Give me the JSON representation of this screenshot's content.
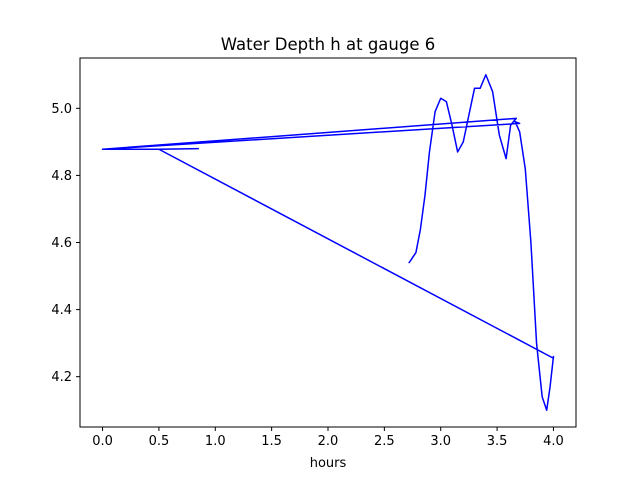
{
  "chart_data": {
    "type": "line",
    "title": "Water Depth h at gauge 6",
    "xlabel": "hours",
    "ylabel": "",
    "xlim": [
      -0.2,
      4.2
    ],
    "ylim": [
      4.05,
      5.15
    ],
    "xticks": [
      0.0,
      0.5,
      1.0,
      1.5,
      2.0,
      2.5,
      3.0,
      3.5,
      4.0
    ],
    "xtick_labels": [
      "0.0",
      "0.5",
      "1.0",
      "1.5",
      "2.0",
      "2.5",
      "3.0",
      "3.5",
      "4.0"
    ],
    "yticks": [
      4.2,
      4.4,
      4.6,
      4.8,
      5.0
    ],
    "ytick_labels": [
      "4.2",
      "4.4",
      "4.6",
      "4.8",
      "5.0"
    ],
    "grid": false,
    "series": [
      {
        "color": "#0000ff",
        "x": [
          0.85,
          0.5,
          0.0,
          3.7,
          3.66,
          3.7,
          3.75,
          3.8,
          3.85,
          3.9,
          3.94,
          3.97,
          4.0,
          4.0,
          0.5,
          0.0,
          3.67,
          3.62,
          3.58,
          3.52,
          3.46,
          3.4,
          3.35,
          3.3,
          3.25,
          3.2,
          3.15,
          3.1,
          3.05,
          3.0,
          2.95,
          2.9,
          2.86,
          2.82,
          2.78,
          2.74,
          2.72
        ],
        "y": [
          4.88,
          4.878,
          4.878,
          4.955,
          4.96,
          4.93,
          4.82,
          4.6,
          4.3,
          4.14,
          4.1,
          4.17,
          4.26,
          4.255,
          4.878,
          4.878,
          4.97,
          4.95,
          4.85,
          4.92,
          5.05,
          5.1,
          5.06,
          5.06,
          4.98,
          4.9,
          4.87,
          4.95,
          5.02,
          5.03,
          4.99,
          4.87,
          4.74,
          4.64,
          4.57,
          4.55,
          4.54
        ]
      }
    ]
  }
}
